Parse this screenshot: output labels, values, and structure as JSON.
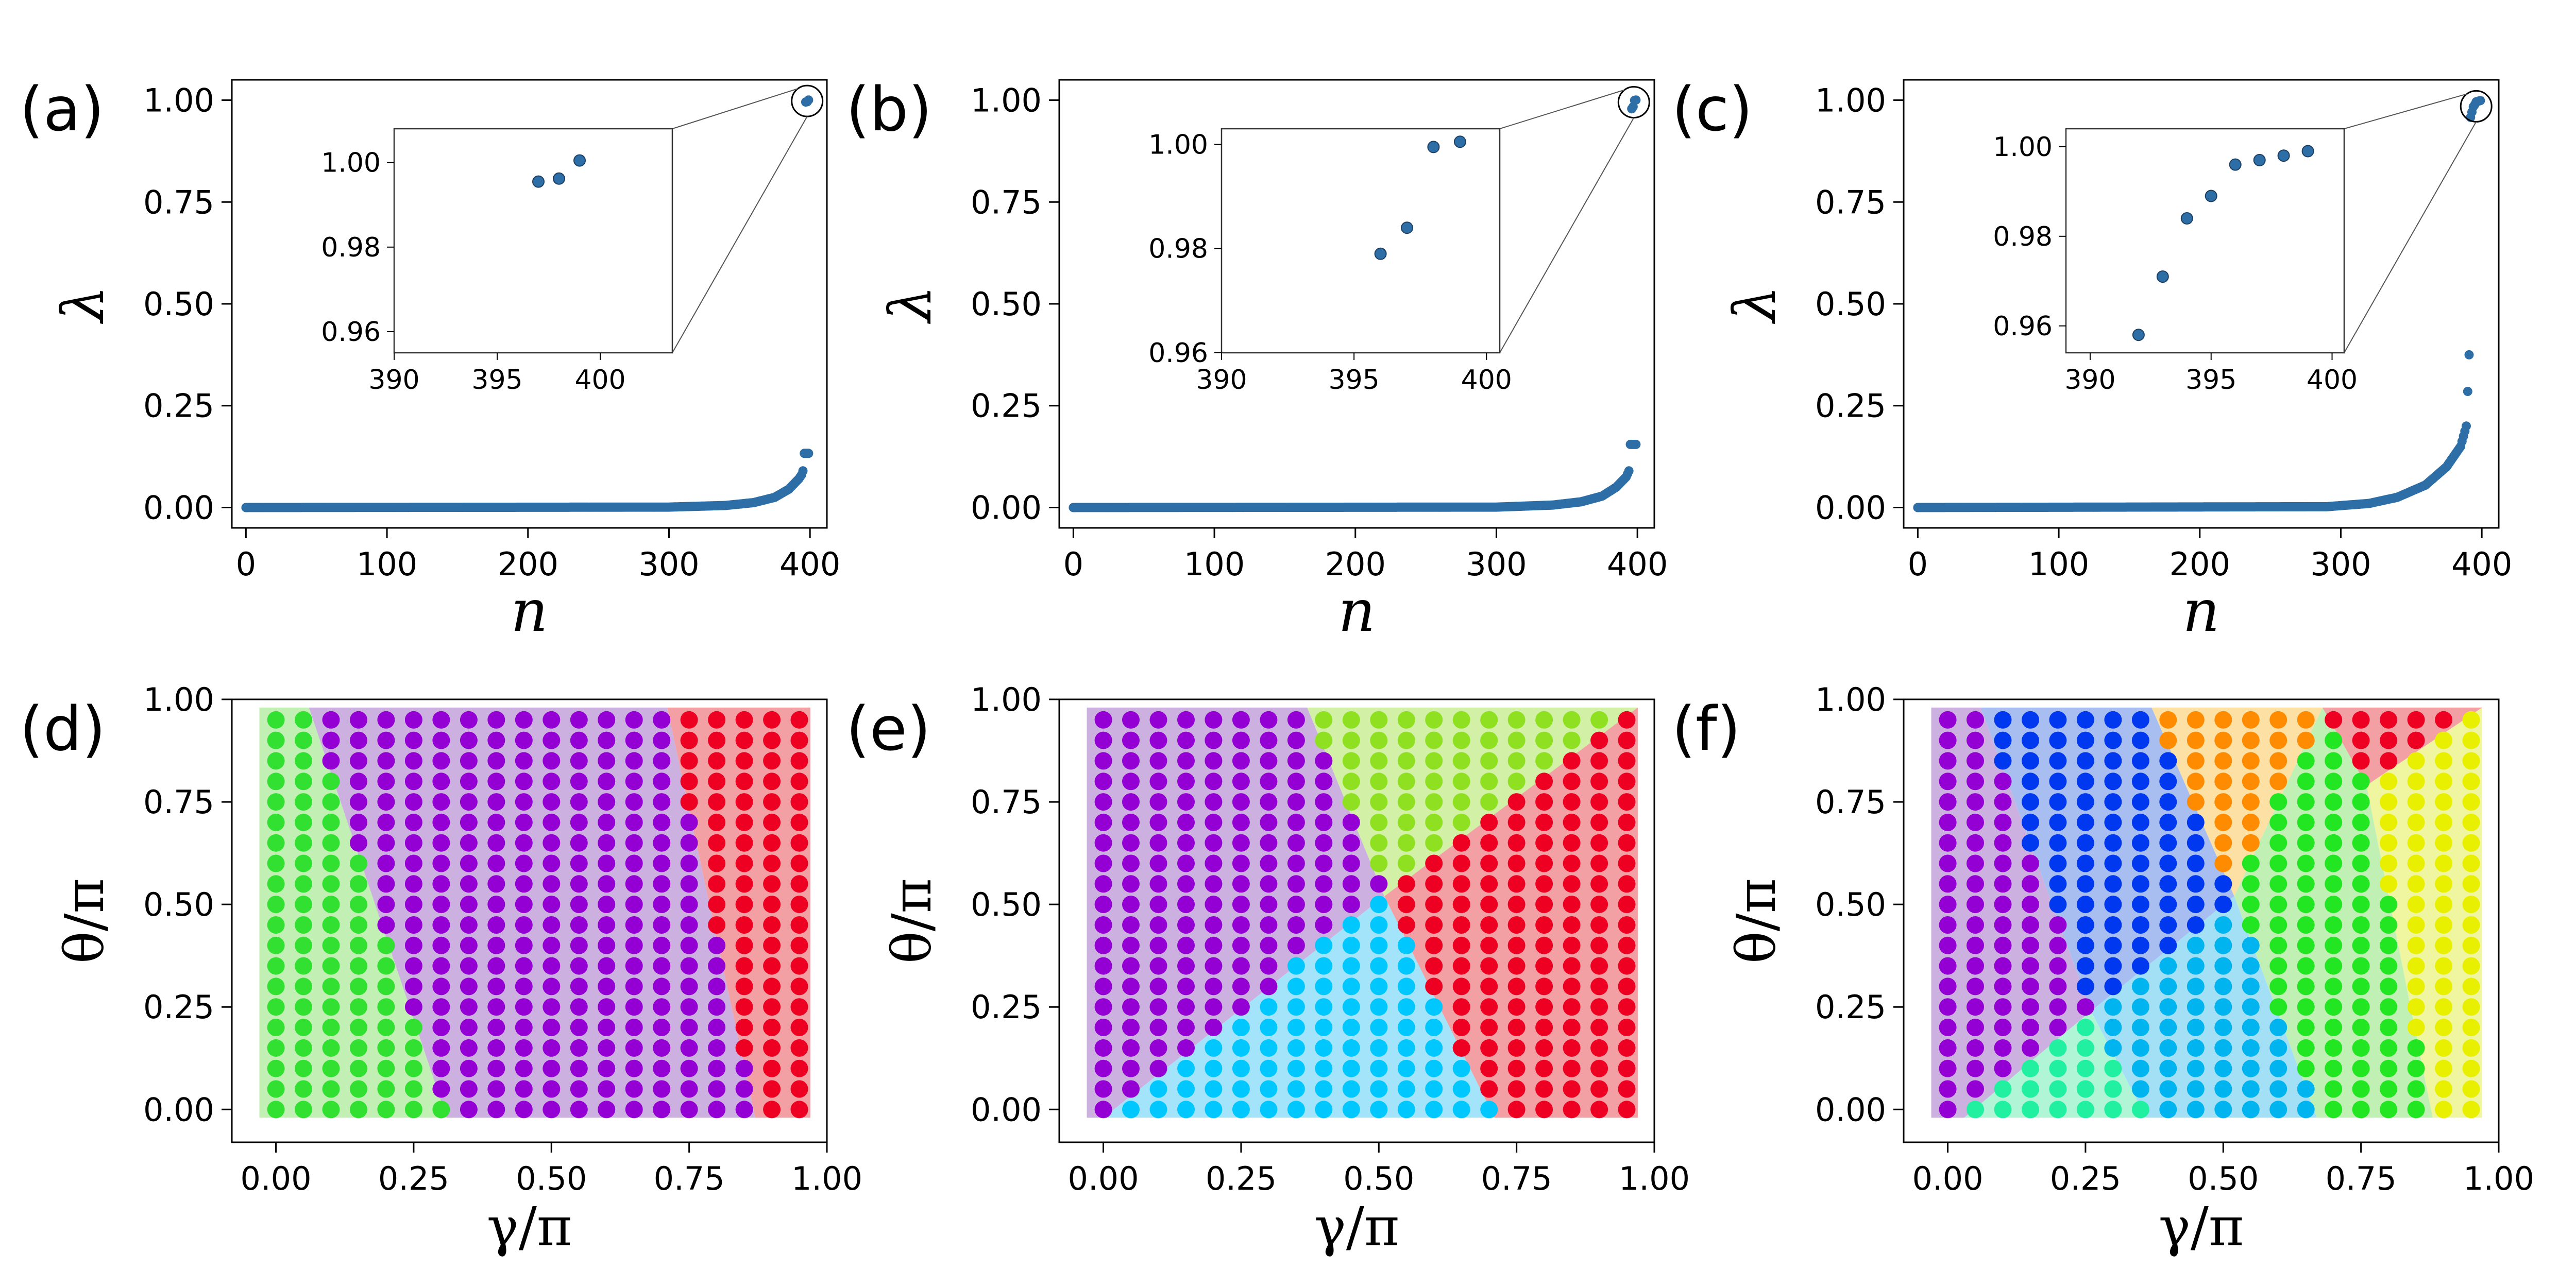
{
  "chart_data": [
    {
      "id": "a",
      "type": "scatter",
      "panel_label": "(a)",
      "xlabel": "n",
      "ylabel": "λ",
      "xlim": [
        -10,
        412
      ],
      "ylim": [
        -0.05,
        1.05
      ],
      "xticks": [
        0,
        100,
        200,
        300,
        400
      ],
      "xtick_labels": [
        "0",
        "100",
        "200",
        "300",
        "400"
      ],
      "yticks": [
        0,
        0.25,
        0.5,
        0.75,
        1.0
      ],
      "ytick_labels": [
        "0.00",
        "0.25",
        "0.50",
        "0.75",
        "1.00"
      ],
      "curve": {
        "n_points": 400,
        "knots": [
          [
            0,
            0
          ],
          [
            300,
            0.001
          ],
          [
            340,
            0.005
          ],
          [
            360,
            0.012
          ],
          [
            375,
            0.025
          ],
          [
            385,
            0.045
          ],
          [
            392,
            0.07
          ],
          [
            394,
            0.08
          ],
          [
            395,
            0.09
          ],
          [
            396,
            0.133
          ]
        ]
      },
      "inset": {
        "xlim": [
          390,
          403.5
        ],
        "ylim": [
          0.955,
          1.008
        ],
        "xticks": [
          390,
          395,
          400
        ],
        "xtick_labels": [
          "390",
          "395",
          "400"
        ],
        "yticks": [
          0.96,
          0.98,
          1.0
        ],
        "ytick_labels": [
          "0.96",
          "0.98",
          "1.00"
        ],
        "points": [
          [
            397,
            0.9955
          ],
          [
            398,
            0.9962
          ],
          [
            399,
            1.0005
          ]
        ]
      },
      "zoom_circle_at": [
        398,
        0.998
      ]
    },
    {
      "id": "b",
      "type": "scatter",
      "panel_label": "(b)",
      "xlabel": "n",
      "ylabel": "λ",
      "xlim": [
        -10,
        412
      ],
      "ylim": [
        -0.05,
        1.05
      ],
      "xticks": [
        0,
        100,
        200,
        300,
        400
      ],
      "xtick_labels": [
        "0",
        "100",
        "200",
        "300",
        "400"
      ],
      "yticks": [
        0,
        0.25,
        0.5,
        0.75,
        1.0
      ],
      "ytick_labels": [
        "0.00",
        "0.25",
        "0.50",
        "0.75",
        "1.00"
      ],
      "curve": {
        "n_points": 400,
        "knots": [
          [
            0,
            0
          ],
          [
            300,
            0.001
          ],
          [
            340,
            0.006
          ],
          [
            360,
            0.014
          ],
          [
            375,
            0.028
          ],
          [
            385,
            0.05
          ],
          [
            392,
            0.075
          ],
          [
            394,
            0.09
          ],
          [
            395,
            0.155
          ]
        ]
      },
      "inset": {
        "xlim": [
          390,
          400.5
        ],
        "ylim": [
          0.96,
          1.003
        ],
        "xticks": [
          390,
          395,
          400
        ],
        "xtick_labels": [
          "390",
          "395",
          "400"
        ],
        "yticks": [
          0.96,
          0.98,
          1.0
        ],
        "ytick_labels": [
          "0.96",
          "0.98",
          "1.00"
        ],
        "points": [
          [
            396,
            0.979
          ],
          [
            397,
            0.984
          ],
          [
            398,
            0.9995
          ],
          [
            399,
            1.0005
          ]
        ]
      },
      "zoom_circle_at": [
        397.5,
        0.995
      ]
    },
    {
      "id": "c",
      "type": "scatter",
      "panel_label": "(c)",
      "xlabel": "n",
      "ylabel": "λ",
      "xlim": [
        -10,
        412
      ],
      "ylim": [
        -0.05,
        1.05
      ],
      "xticks": [
        0,
        100,
        200,
        300,
        400
      ],
      "xtick_labels": [
        "0",
        "100",
        "200",
        "300",
        "400"
      ],
      "yticks": [
        0,
        0.25,
        0.5,
        0.75,
        1.0
      ],
      "ytick_labels": [
        "0.00",
        "0.25",
        "0.50",
        "0.75",
        "1.00"
      ],
      "curve": {
        "n_points": 392,
        "knots": [
          [
            0,
            0
          ],
          [
            290,
            0.002
          ],
          [
            320,
            0.01
          ],
          [
            340,
            0.025
          ],
          [
            360,
            0.055
          ],
          [
            375,
            0.1
          ],
          [
            385,
            0.15
          ],
          [
            389,
            0.2
          ],
          [
            390,
            0.285
          ],
          [
            391,
            0.375
          ]
        ]
      },
      "inset": {
        "xlim": [
          389,
          400.5
        ],
        "ylim": [
          0.954,
          1.004
        ],
        "xticks": [
          390,
          395,
          400
        ],
        "xtick_labels": [
          "390",
          "395",
          "400"
        ],
        "yticks": [
          0.96,
          0.98,
          1.0
        ],
        "ytick_labels": [
          "0.96",
          "0.98",
          "1.00"
        ],
        "points": [
          [
            392,
            0.958
          ],
          [
            393,
            0.971
          ],
          [
            394,
            0.984
          ],
          [
            395,
            0.989
          ],
          [
            396,
            0.996
          ],
          [
            397,
            0.997
          ],
          [
            398,
            0.998
          ],
          [
            399,
            0.999
          ]
        ]
      },
      "zoom_circle_at": [
        396,
        0.985
      ]
    },
    {
      "id": "d",
      "type": "scatter",
      "panel_label": "(d)",
      "xlabel": "γ/π",
      "ylabel": "θ/π",
      "xlim": [
        -0.08,
        1.0
      ],
      "ylim": [
        -0.08,
        1.0
      ],
      "xticks": [
        0,
        0.25,
        0.5,
        0.75,
        1.0
      ],
      "xtick_labels": [
        "0.00",
        "0.25",
        "0.50",
        "0.75",
        "1.00"
      ],
      "yticks": [
        0,
        0.25,
        0.5,
        0.75,
        1.0
      ],
      "ytick_labels": [
        "0.00",
        "0.25",
        "0.50",
        "0.75",
        "1.00"
      ],
      "grid": {
        "n": 20,
        "step": 0.05
      },
      "phases": [
        {
          "color": "#32e032",
          "shade": "#c2f0b4",
          "region": [
            [
              -0.03,
              -0.02
            ],
            [
              0.31,
              -0.02
            ],
            [
              0.06,
              0.98
            ],
            [
              -0.03,
              0.98
            ]
          ]
        },
        {
          "color": "#9400d3",
          "shade": "#ccb0e0",
          "region": [
            [
              0.31,
              -0.02
            ],
            [
              0.87,
              -0.02
            ],
            [
              0.71,
              0.98
            ],
            [
              0.06,
              0.98
            ]
          ]
        },
        {
          "color": "#ee0022",
          "shade": "#f2a0a4",
          "region": [
            [
              0.87,
              -0.02
            ],
            [
              0.97,
              -0.02
            ],
            [
              0.97,
              0.98
            ],
            [
              0.71,
              0.98
            ]
          ]
        }
      ]
    },
    {
      "id": "e",
      "type": "scatter",
      "panel_label": "(e)",
      "xlabel": "γ/π",
      "ylabel": "θ/π",
      "xlim": [
        -0.08,
        1.0
      ],
      "ylim": [
        -0.08,
        1.0
      ],
      "xticks": [
        0,
        0.25,
        0.5,
        0.75,
        1.0
      ],
      "xtick_labels": [
        "0.00",
        "0.25",
        "0.50",
        "0.75",
        "1.00"
      ],
      "yticks": [
        0,
        0.25,
        0.5,
        0.75,
        1.0
      ],
      "ytick_labels": [
        "0.00",
        "0.25",
        "0.50",
        "0.75",
        "1.00"
      ],
      "grid": {
        "n": 20,
        "step": 0.05
      },
      "phases": [
        {
          "color": "#9400d3",
          "shade": "#ccb0e0",
          "region": [
            [
              -0.03,
              -0.02
            ],
            [
              0.0,
              -0.02
            ],
            [
              0.51,
              0.52
            ],
            [
              0.37,
              0.98
            ],
            [
              -0.03,
              0.98
            ]
          ]
        },
        {
          "color": "#8ee020",
          "shade": "#d2f0a6",
          "region": [
            [
              0.37,
              0.98
            ],
            [
              0.97,
              0.98
            ],
            [
              0.51,
              0.52
            ]
          ]
        },
        {
          "color": "#ee0022",
          "shade": "#f2a0a4",
          "region": [
            [
              0.51,
              0.52
            ],
            [
              0.97,
              0.98
            ],
            [
              0.97,
              -0.02
            ],
            [
              0.71,
              -0.02
            ]
          ]
        },
        {
          "color": "#00c8ff",
          "shade": "#a4e4fa",
          "region": [
            [
              0.0,
              -0.02
            ],
            [
              0.71,
              -0.02
            ],
            [
              0.51,
              0.52
            ]
          ]
        }
      ]
    },
    {
      "id": "f",
      "type": "scatter",
      "panel_label": "(f)",
      "xlabel": "γ/π",
      "ylabel": "θ/π",
      "xlim": [
        -0.08,
        1.0
      ],
      "ylim": [
        -0.08,
        1.0
      ],
      "xticks": [
        0,
        0.25,
        0.5,
        0.75,
        1.0
      ],
      "xtick_labels": [
        "0.00",
        "0.25",
        "0.50",
        "0.75",
        "1.00"
      ],
      "yticks": [
        0,
        0.25,
        0.5,
        0.75,
        1.0
      ],
      "ytick_labels": [
        "0.00",
        "0.25",
        "0.50",
        "0.75",
        "1.00"
      ],
      "grid": {
        "n": 20,
        "step": 0.05
      },
      "phases": [
        {
          "color": "#9400d3",
          "shade": "#ccb0e0",
          "region": [
            [
              -0.03,
              -0.02
            ],
            [
              0.03,
              -0.02
            ],
            [
              0.26,
              0.24
            ],
            [
              0.06,
              0.98
            ],
            [
              -0.03,
              0.98
            ]
          ]
        },
        {
          "color": "#0038f0",
          "shade": "#a8bef0",
          "region": [
            [
              0.06,
              0.98
            ],
            [
              0.37,
              0.98
            ],
            [
              0.52,
              0.52
            ],
            [
              0.26,
              0.24
            ]
          ]
        },
        {
          "color": "#ff8c00",
          "shade": "#fce0a4",
          "region": [
            [
              0.37,
              0.98
            ],
            [
              0.68,
              0.98
            ],
            [
              0.52,
              0.52
            ]
          ]
        },
        {
          "color": "#ee0022",
          "shade": "#f2a0a4",
          "region": [
            [
              0.68,
              0.98
            ],
            [
              0.97,
              0.98
            ],
            [
              0.76,
              0.79
            ]
          ]
        },
        {
          "color": "#e8f000",
          "shade": "#f0f5a0",
          "region": [
            [
              0.97,
              0.98
            ],
            [
              0.97,
              -0.02
            ],
            [
              0.88,
              -0.02
            ],
            [
              0.76,
              0.79
            ]
          ]
        },
        {
          "color": "#22e622",
          "shade": "#c0f0b4",
          "region": [
            [
              0.52,
              0.52
            ],
            [
              0.68,
              0.98
            ],
            [
              0.76,
              0.79
            ],
            [
              0.88,
              -0.02
            ],
            [
              0.67,
              -0.02
            ]
          ]
        },
        {
          "color": "#00b4f0",
          "shade": "#a4e0f5",
          "region": [
            [
              0.26,
              0.24
            ],
            [
              0.52,
              0.52
            ],
            [
              0.67,
              -0.02
            ],
            [
              0.36,
              -0.02
            ]
          ]
        },
        {
          "color": "#20f0a0",
          "shade": "#b0f5d6",
          "region": [
            [
              0.03,
              -0.02
            ],
            [
              0.36,
              -0.02
            ],
            [
              0.26,
              0.24
            ]
          ]
        }
      ]
    }
  ]
}
